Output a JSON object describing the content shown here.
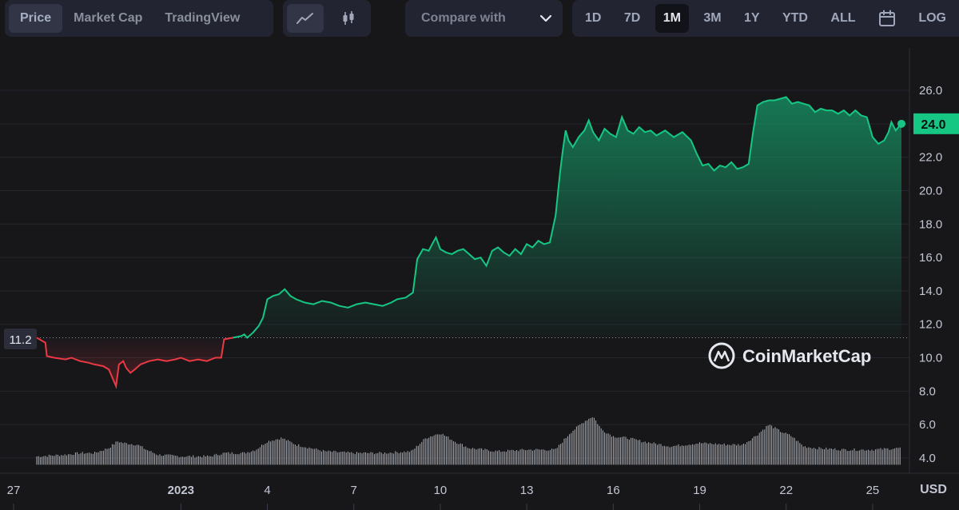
{
  "toolbar": {
    "type_tabs": [
      "Price",
      "Market Cap",
      "TradingView"
    ],
    "active_type": "Price",
    "chart_styles": [
      "line-chart-icon",
      "candlestick-icon"
    ],
    "active_style": "line-chart-icon",
    "compare_label": "Compare with",
    "ranges": [
      "1D",
      "7D",
      "1M",
      "3M",
      "1Y",
      "YTD",
      "ALL"
    ],
    "active_range": "1M",
    "calendar_icon": "calendar-icon",
    "log_label": "LOG"
  },
  "watermark": "CoinMarketCap",
  "colors": {
    "up": "#16c784",
    "down": "#ea3943",
    "background": "#17171a",
    "volume": "#c9ccd4"
  },
  "chart_data": {
    "type": "area",
    "currency_label": "USD",
    "y_ticks": [
      "4.0",
      "6.0",
      "8.0",
      "10.0",
      "12.0",
      "14.0",
      "16.0",
      "18.0",
      "20.0",
      "22.0",
      "24.0",
      "26.0"
    ],
    "ylim": [
      3.0,
      27.0
    ],
    "x_ticks": [
      {
        "label": "27",
        "day": 0
      },
      {
        "label": "2023",
        "day": 5,
        "bold": true
      },
      {
        "label": "4",
        "day": 8
      },
      {
        "label": "7",
        "day": 11
      },
      {
        "label": "10",
        "day": 14
      },
      {
        "label": "13",
        "day": 17
      },
      {
        "label": "16",
        "day": 20
      },
      {
        "label": "19",
        "day": 23
      },
      {
        "label": "22",
        "day": 26
      },
      {
        "label": "25",
        "day": 29
      }
    ],
    "start_price_label": "11.2",
    "start_price": 11.2,
    "current_price_label": "24.0",
    "current_price": 24.0,
    "price_series": [
      [
        0.0,
        11.2
      ],
      [
        0.3,
        10.9
      ],
      [
        0.35,
        10.1
      ],
      [
        0.6,
        10.0
      ],
      [
        1.0,
        9.9
      ],
      [
        1.2,
        10.0
      ],
      [
        1.5,
        9.8
      ],
      [
        1.8,
        9.7
      ],
      [
        2.0,
        9.6
      ],
      [
        2.3,
        9.5
      ],
      [
        2.5,
        9.3
      ],
      [
        2.75,
        8.3
      ],
      [
        2.85,
        9.6
      ],
      [
        3.0,
        9.8
      ],
      [
        3.1,
        9.4
      ],
      [
        3.25,
        9.1
      ],
      [
        3.4,
        9.3
      ],
      [
        3.6,
        9.6
      ],
      [
        3.9,
        9.8
      ],
      [
        4.2,
        9.9
      ],
      [
        4.5,
        9.8
      ],
      [
        4.8,
        9.9
      ],
      [
        5.0,
        10.0
      ],
      [
        5.3,
        9.8
      ],
      [
        5.6,
        9.9
      ],
      [
        5.9,
        9.8
      ],
      [
        6.2,
        10.0
      ],
      [
        6.4,
        10.0
      ],
      [
        6.5,
        11.1
      ],
      [
        6.8,
        11.2
      ],
      [
        7.1,
        11.3
      ],
      [
        7.2,
        11.4
      ],
      [
        7.3,
        11.2
      ],
      [
        7.5,
        11.5
      ],
      [
        7.7,
        11.9
      ],
      [
        7.85,
        12.4
      ],
      [
        8.0,
        13.5
      ],
      [
        8.2,
        13.7
      ],
      [
        8.4,
        13.8
      ],
      [
        8.6,
        14.1
      ],
      [
        8.8,
        13.7
      ],
      [
        9.0,
        13.5
      ],
      [
        9.3,
        13.3
      ],
      [
        9.6,
        13.2
      ],
      [
        9.9,
        13.4
      ],
      [
        10.2,
        13.3
      ],
      [
        10.5,
        13.1
      ],
      [
        10.8,
        13.0
      ],
      [
        11.1,
        13.2
      ],
      [
        11.4,
        13.3
      ],
      [
        11.7,
        13.2
      ],
      [
        12.0,
        13.1
      ],
      [
        12.3,
        13.3
      ],
      [
        12.5,
        13.5
      ],
      [
        12.8,
        13.6
      ],
      [
        13.05,
        13.9
      ],
      [
        13.2,
        15.9
      ],
      [
        13.4,
        16.5
      ],
      [
        13.6,
        16.4
      ],
      [
        13.75,
        16.9
      ],
      [
        13.85,
        17.2
      ],
      [
        14.0,
        16.5
      ],
      [
        14.2,
        16.3
      ],
      [
        14.4,
        16.2
      ],
      [
        14.6,
        16.4
      ],
      [
        14.8,
        16.5
      ],
      [
        15.0,
        16.2
      ],
      [
        15.2,
        15.9
      ],
      [
        15.4,
        16.0
      ],
      [
        15.6,
        15.5
      ],
      [
        15.8,
        16.4
      ],
      [
        16.0,
        16.6
      ],
      [
        16.2,
        16.3
      ],
      [
        16.4,
        16.1
      ],
      [
        16.6,
        16.5
      ],
      [
        16.8,
        16.2
      ],
      [
        17.0,
        16.8
      ],
      [
        17.2,
        16.6
      ],
      [
        17.4,
        17.0
      ],
      [
        17.6,
        16.8
      ],
      [
        17.8,
        16.9
      ],
      [
        18.0,
        18.5
      ],
      [
        18.15,
        21.0
      ],
      [
        18.25,
        22.4
      ],
      [
        18.35,
        23.6
      ],
      [
        18.45,
        23.0
      ],
      [
        18.6,
        22.6
      ],
      [
        18.8,
        23.2
      ],
      [
        19.0,
        23.6
      ],
      [
        19.15,
        24.2
      ],
      [
        19.3,
        23.5
      ],
      [
        19.5,
        23.0
      ],
      [
        19.7,
        23.7
      ],
      [
        19.9,
        23.4
      ],
      [
        20.1,
        23.2
      ],
      [
        20.3,
        24.4
      ],
      [
        20.5,
        23.6
      ],
      [
        20.7,
        23.4
      ],
      [
        20.9,
        23.8
      ],
      [
        21.1,
        23.5
      ],
      [
        21.3,
        23.6
      ],
      [
        21.5,
        23.3
      ],
      [
        21.8,
        23.6
      ],
      [
        22.1,
        23.2
      ],
      [
        22.4,
        23.5
      ],
      [
        22.7,
        23.0
      ],
      [
        22.9,
        22.2
      ],
      [
        23.1,
        21.5
      ],
      [
        23.3,
        21.6
      ],
      [
        23.5,
        21.2
      ],
      [
        23.7,
        21.5
      ],
      [
        23.9,
        21.4
      ],
      [
        24.1,
        21.7
      ],
      [
        24.3,
        21.3
      ],
      [
        24.5,
        21.4
      ],
      [
        24.7,
        21.6
      ],
      [
        24.85,
        23.5
      ],
      [
        25.0,
        25.1
      ],
      [
        25.2,
        25.3
      ],
      [
        25.4,
        25.4
      ],
      [
        25.6,
        25.4
      ],
      [
        25.8,
        25.5
      ],
      [
        26.0,
        25.6
      ],
      [
        26.2,
        25.2
      ],
      [
        26.4,
        25.3
      ],
      [
        26.6,
        25.2
      ],
      [
        26.8,
        25.1
      ],
      [
        27.0,
        24.7
      ],
      [
        27.2,
        24.9
      ],
      [
        27.4,
        24.8
      ],
      [
        27.6,
        24.8
      ],
      [
        27.8,
        24.6
      ],
      [
        28.0,
        24.8
      ],
      [
        28.2,
        24.5
      ],
      [
        28.4,
        24.8
      ],
      [
        28.6,
        24.5
      ],
      [
        28.8,
        24.4
      ],
      [
        29.0,
        23.2
      ],
      [
        29.2,
        22.8
      ],
      [
        29.4,
        23.0
      ],
      [
        29.55,
        23.5
      ],
      [
        29.65,
        24.1
      ],
      [
        29.8,
        23.6
      ],
      [
        30.0,
        24.0
      ]
    ],
    "volume_series": [
      [
        0.0,
        4.1
      ],
      [
        1.0,
        4.2
      ],
      [
        1.5,
        4.3
      ],
      [
        2.0,
        4.3
      ],
      [
        2.5,
        4.6
      ],
      [
        2.8,
        5.0
      ],
      [
        3.0,
        4.9
      ],
      [
        3.5,
        4.8
      ],
      [
        3.8,
        4.5
      ],
      [
        4.2,
        4.2
      ],
      [
        5.0,
        4.1
      ],
      [
        6.0,
        4.1
      ],
      [
        6.5,
        4.3
      ],
      [
        7.2,
        4.3
      ],
      [
        7.6,
        4.5
      ],
      [
        8.0,
        5.0
      ],
      [
        8.5,
        5.2
      ],
      [
        9.0,
        4.8
      ],
      [
        10.0,
        4.4
      ],
      [
        11.0,
        4.3
      ],
      [
        12.0,
        4.3
      ],
      [
        13.0,
        4.4
      ],
      [
        13.5,
        5.2
      ],
      [
        14.0,
        5.5
      ],
      [
        14.5,
        5.0
      ],
      [
        15.0,
        4.6
      ],
      [
        16.0,
        4.4
      ],
      [
        17.0,
        4.5
      ],
      [
        18.0,
        4.5
      ],
      [
        18.5,
        5.5
      ],
      [
        19.0,
        6.2
      ],
      [
        19.3,
        6.5
      ],
      [
        19.6,
        5.7
      ],
      [
        20.0,
        5.3
      ],
      [
        20.5,
        5.2
      ],
      [
        21.0,
        5.0
      ],
      [
        22.0,
        4.7
      ],
      [
        23.0,
        4.9
      ],
      [
        24.0,
        4.8
      ],
      [
        24.5,
        4.8
      ],
      [
        25.0,
        5.4
      ],
      [
        25.4,
        6.0
      ],
      [
        25.8,
        5.6
      ],
      [
        26.2,
        5.3
      ],
      [
        26.6,
        4.7
      ],
      [
        27.0,
        4.6
      ],
      [
        28.0,
        4.5
      ],
      [
        29.0,
        4.5
      ],
      [
        30.0,
        4.6
      ]
    ]
  }
}
